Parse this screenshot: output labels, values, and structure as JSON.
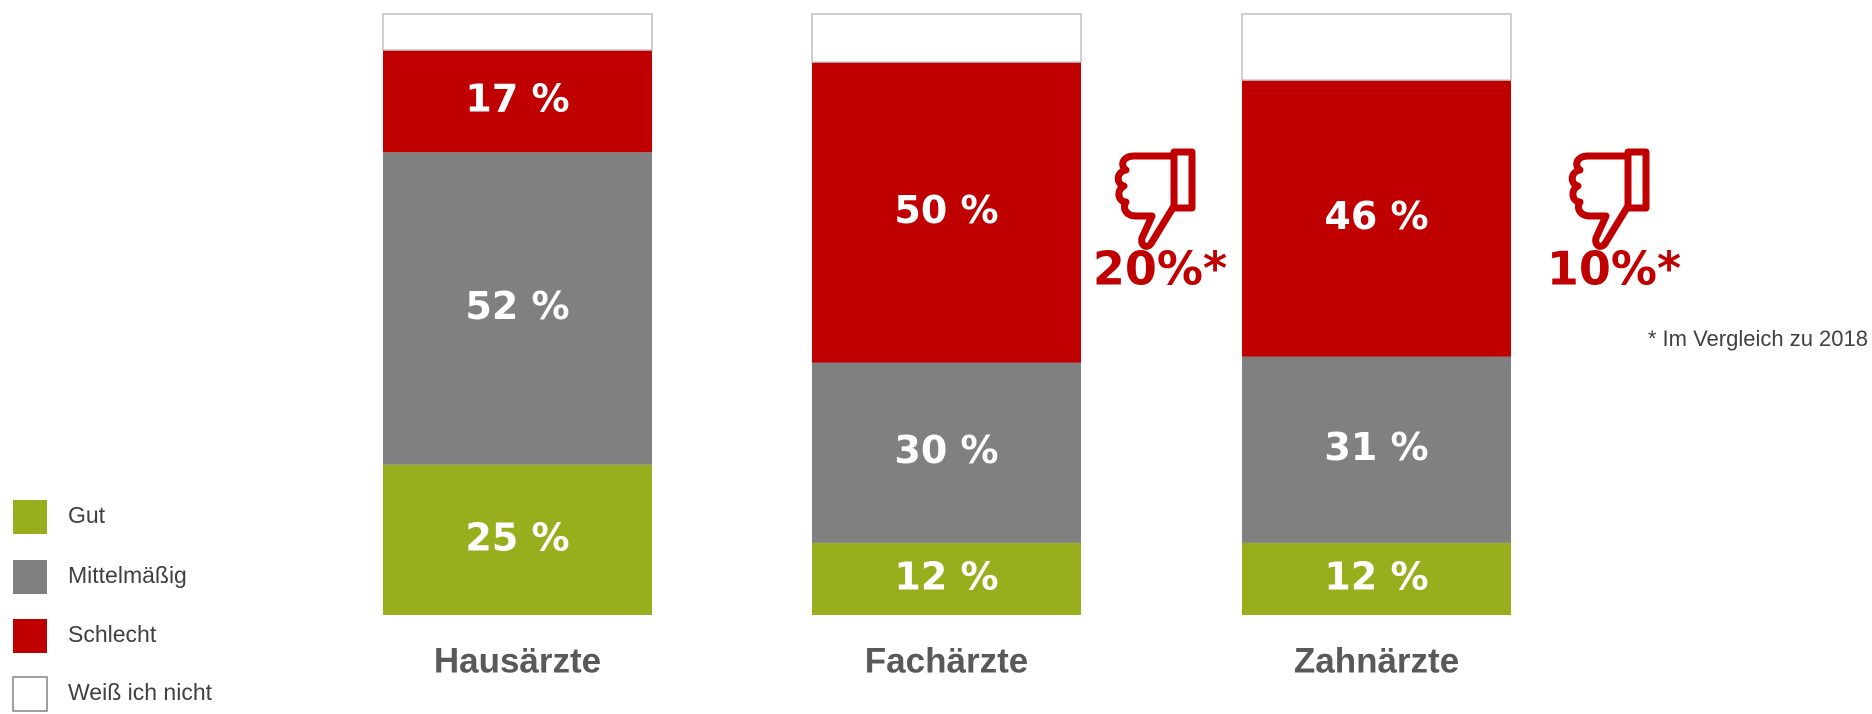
{
  "chart_data": {
    "type": "stacked_bar",
    "categories": [
      "Hausärzte",
      "Fachärzte",
      "Zahnärzte"
    ],
    "series": [
      {
        "name": "Gut",
        "color": "#98ae1c",
        "values": [
          25,
          12,
          12
        ],
        "value_labels": [
          "25 %",
          "12 %",
          "12 %"
        ]
      },
      {
        "name": "Mittelmäßig",
        "color": "#808080",
        "values": [
          52,
          30,
          31
        ],
        "value_labels": [
          "52 %",
          "30 %",
          "31 %"
        ]
      },
      {
        "name": "Schlecht",
        "color": "#c00000",
        "values": [
          17,
          50,
          46
        ],
        "value_labels": [
          "17 %",
          "50 %",
          "46 %"
        ]
      },
      {
        "name": "Weiß ich nicht",
        "color": "#ffffff",
        "values": [
          6,
          8,
          11
        ]
      }
    ],
    "ylim": [
      0,
      100
    ],
    "annotations": [
      "20%*",
      "10%*",
      "* Im Vergleich zu 2018"
    ]
  }
}
